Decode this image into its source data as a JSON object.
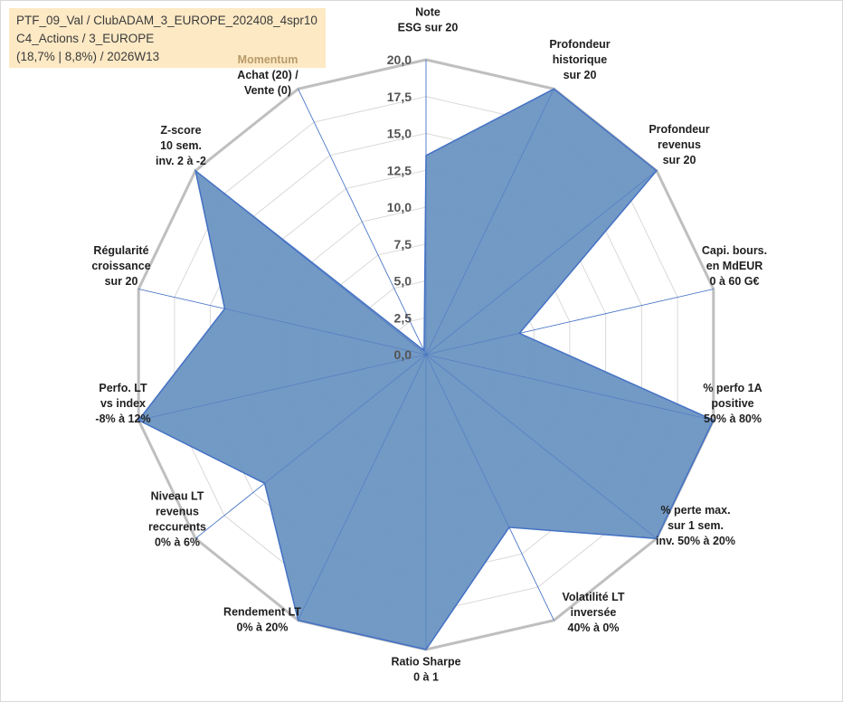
{
  "header": {
    "line1": "PTF_09_Val / ClubADAM_3_EUROPE_202408_4spr10",
    "line2": "C4_Actions / 3_EUROPE",
    "line3": "(18,7% | 8,8%) / 2026W13"
  },
  "colors": {
    "fill": "#6c93c2",
    "stroke": "#4472c4",
    "outer_grid": "#bfbfbf",
    "inner_grid": "#d9d9d9",
    "spoke": "#4472c4",
    "header_bg": "#fde9c4",
    "momentum_label": "#b89a6a"
  },
  "chart_data": {
    "type": "radar",
    "rmax": 20,
    "rticks": [
      "0,0",
      "2,5",
      "5,0",
      "7,5",
      "10,0",
      "12,5",
      "15,0",
      "17,5",
      "20,0"
    ],
    "axes": [
      {
        "lines": [
          "Note",
          "ESG sur 20"
        ],
        "value": 13.5
      },
      {
        "lines": [
          "Profondeur",
          "historique",
          "sur 20"
        ],
        "value": 20
      },
      {
        "lines": [
          "Profondeur",
          "revenus",
          "sur 20"
        ],
        "value": 20
      },
      {
        "lines": [
          "Capi. bours.",
          "en MdEUR",
          "0 à 60 G€"
        ],
        "value": 6.5
      },
      {
        "lines": [
          "% perfo 1A",
          "positive",
          "50% à 80%"
        ],
        "value": 20
      },
      {
        "lines": [
          "% perte max.",
          "sur 1 sem.",
          "inv. 50% à 20%"
        ],
        "value": 20
      },
      {
        "lines": [
          "Volatilité LT",
          "inversée",
          "40% à 0%"
        ],
        "value": 13
      },
      {
        "lines": [
          "Ratio Sharpe",
          "0 à 1"
        ],
        "value": 20
      },
      {
        "lines": [
          "Rendement LT",
          "0% à 20%"
        ],
        "value": 20
      },
      {
        "lines": [
          "Niveau LT",
          "revenus",
          "reccurents",
          "0% à 6%"
        ],
        "value": 14
      },
      {
        "lines": [
          "Perfo. LT",
          "vs index",
          "-8% à 12%"
        ],
        "value": 20
      },
      {
        "lines": [
          "Régularité",
          "croissance",
          "sur 20"
        ],
        "value": 14
      },
      {
        "lines": [
          "Z-score",
          "10 sem.",
          "inv. 2 à -2"
        ],
        "value": 20
      },
      {
        "lines": [
          "Momentum",
          "Achat (20) /",
          "Vente (0)"
        ],
        "value": 0.3
      }
    ]
  }
}
